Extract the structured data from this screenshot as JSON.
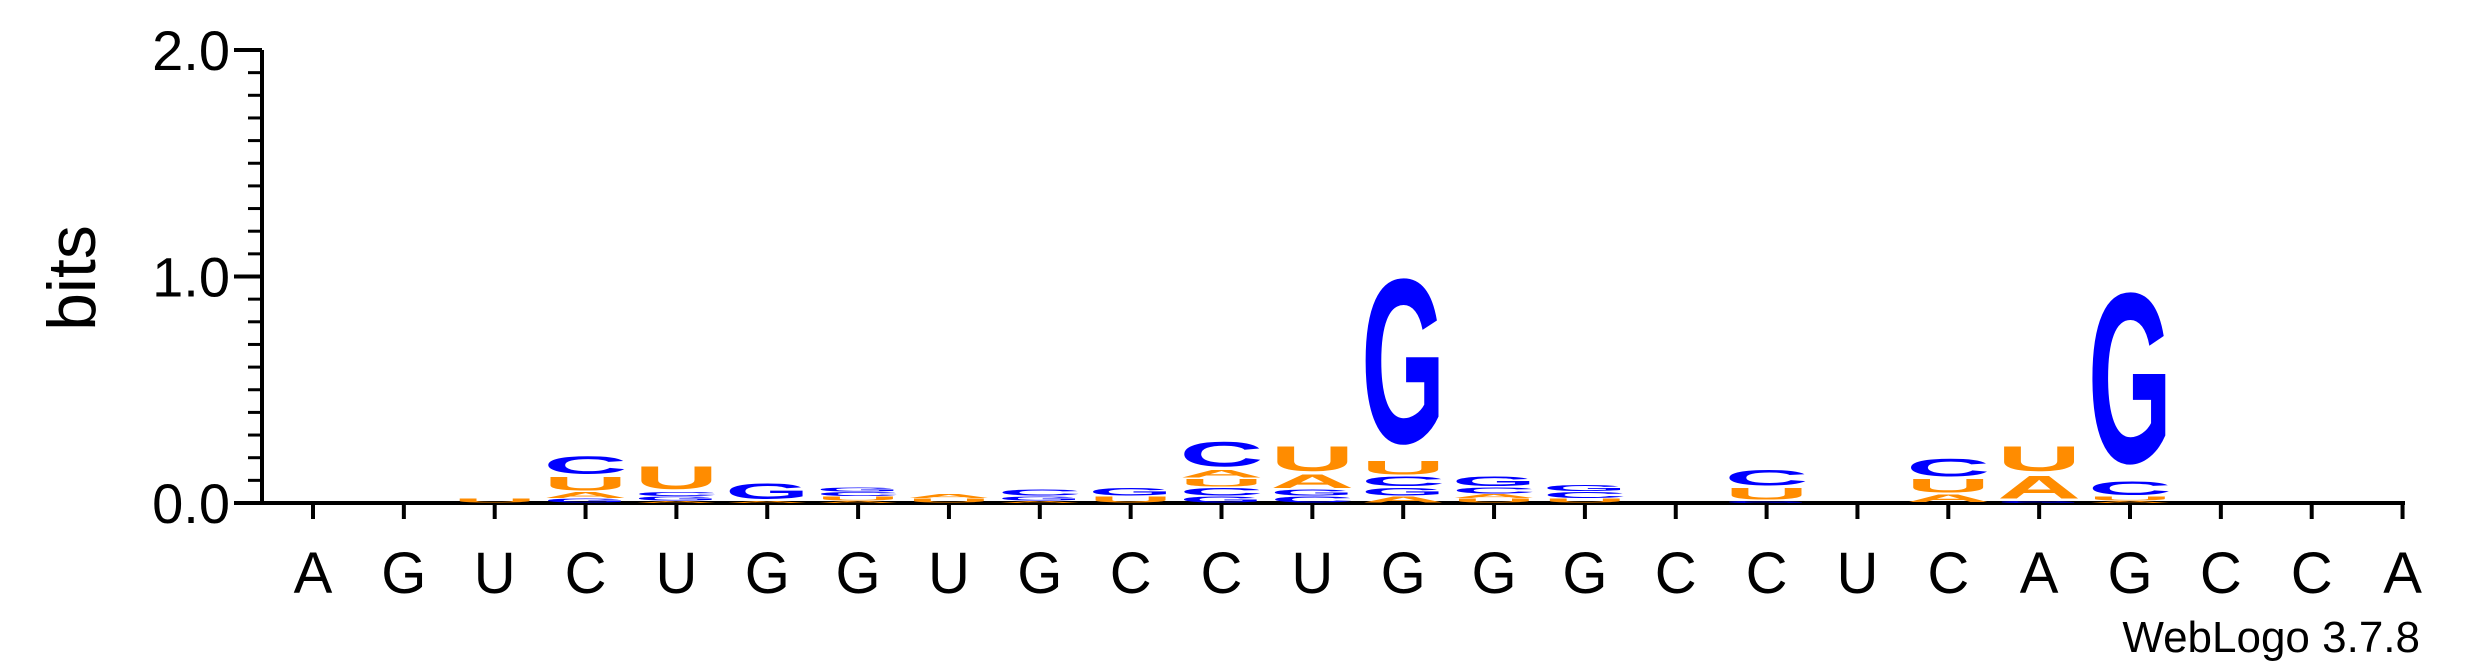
{
  "chart_data": {
    "type": "sequence-logo",
    "ylabel": "bits",
    "ylim": [
      0,
      2.0
    ],
    "yticks": [
      "0.0",
      "1.0",
      "2.0"
    ],
    "ytick_values": [
      0,
      1,
      2
    ],
    "credit": "WebLogo 3.7.8",
    "colors": {
      "G": "#0000ff",
      "C": "#0000ff",
      "A": "#ff8c00",
      "U": "#ff8c00"
    },
    "positions": [
      {
        "label": "A",
        "stack": []
      },
      {
        "label": "G",
        "stack": []
      },
      {
        "label": "U",
        "stack": [
          {
            "letter": "U",
            "bits": 0.02
          }
        ]
      },
      {
        "label": "C",
        "stack": [
          {
            "letter": "G",
            "bits": 0.02
          },
          {
            "letter": "A",
            "bits": 0.03
          },
          {
            "letter": "U",
            "bits": 0.07
          },
          {
            "letter": "C",
            "bits": 0.09
          }
        ]
      },
      {
        "label": "U",
        "stack": [
          {
            "letter": "A",
            "bits": 0.01
          },
          {
            "letter": "G",
            "bits": 0.02
          },
          {
            "letter": "C",
            "bits": 0.02
          },
          {
            "letter": "U",
            "bits": 0.12
          }
        ]
      },
      {
        "label": "G",
        "stack": [
          {
            "letter": "A",
            "bits": 0.01
          },
          {
            "letter": "G",
            "bits": 0.08
          }
        ]
      },
      {
        "label": "G",
        "stack": [
          {
            "letter": "A",
            "bits": 0.01
          },
          {
            "letter": "U",
            "bits": 0.02
          },
          {
            "letter": "C",
            "bits": 0.02
          },
          {
            "letter": "G",
            "bits": 0.02
          }
        ]
      },
      {
        "label": "U",
        "stack": [
          {
            "letter": "U",
            "bits": 0.02
          },
          {
            "letter": "A",
            "bits": 0.02
          }
        ]
      },
      {
        "label": "G",
        "stack": [
          {
            "letter": "A",
            "bits": 0.01
          },
          {
            "letter": "G",
            "bits": 0.02
          },
          {
            "letter": "C",
            "bits": 0.03
          }
        ]
      },
      {
        "label": "C",
        "stack": [
          {
            "letter": "U",
            "bits": 0.03
          },
          {
            "letter": "G",
            "bits": 0.04
          }
        ]
      },
      {
        "label": "C",
        "stack": [
          {
            "letter": "G",
            "bits": 0.03
          },
          {
            "letter": "C",
            "bits": 0.04
          },
          {
            "letter": "U",
            "bits": 0.04
          },
          {
            "letter": "A",
            "bits": 0.04
          },
          {
            "letter": "C",
            "bits": 0.13
          }
        ]
      },
      {
        "label": "U",
        "stack": [
          {
            "letter": "C",
            "bits": 0.03
          },
          {
            "letter": "G",
            "bits": 0.03
          },
          {
            "letter": "A",
            "bits": 0.07
          },
          {
            "letter": "U",
            "bits": 0.13
          }
        ]
      },
      {
        "label": "G",
        "stack": [
          {
            "letter": "A",
            "bits": 0.03
          },
          {
            "letter": "G",
            "bits": 0.04
          },
          {
            "letter": "C",
            "bits": 0.05
          },
          {
            "letter": "U",
            "bits": 0.07
          },
          {
            "letter": "G",
            "bits": 0.86
          }
        ]
      },
      {
        "label": "G",
        "stack": [
          {
            "letter": "U",
            "bits": 0.02
          },
          {
            "letter": "A",
            "bits": 0.02
          },
          {
            "letter": "C",
            "bits": 0.03
          },
          {
            "letter": "G",
            "bits": 0.05
          }
        ]
      },
      {
        "label": "G",
        "stack": [
          {
            "letter": "U",
            "bits": 0.02
          },
          {
            "letter": "C",
            "bits": 0.03
          },
          {
            "letter": "G",
            "bits": 0.03
          }
        ]
      },
      {
        "label": "C",
        "stack": []
      },
      {
        "label": "C",
        "stack": [
          {
            "letter": "G",
            "bits": 0.01
          },
          {
            "letter": "U",
            "bits": 0.06
          },
          {
            "letter": "C",
            "bits": 0.08
          }
        ]
      },
      {
        "label": "U",
        "stack": []
      },
      {
        "label": "C",
        "stack": [
          {
            "letter": "A",
            "bits": 0.04
          },
          {
            "letter": "U",
            "bits": 0.07
          },
          {
            "letter": "C",
            "bits": 0.09
          }
        ]
      },
      {
        "label": "A",
        "stack": [
          {
            "letter": "G",
            "bits": 0.01
          },
          {
            "letter": "A",
            "bits": 0.12
          },
          {
            "letter": "U",
            "bits": 0.13
          }
        ]
      },
      {
        "label": "G",
        "stack": [
          {
            "letter": "A",
            "bits": 0.01
          },
          {
            "letter": "U",
            "bits": 0.02
          },
          {
            "letter": "C",
            "bits": 0.07
          },
          {
            "letter": "G",
            "bits": 0.89
          }
        ]
      },
      {
        "label": "C",
        "stack": []
      },
      {
        "label": "C",
        "stack": []
      },
      {
        "label": "A",
        "stack": []
      }
    ]
  }
}
